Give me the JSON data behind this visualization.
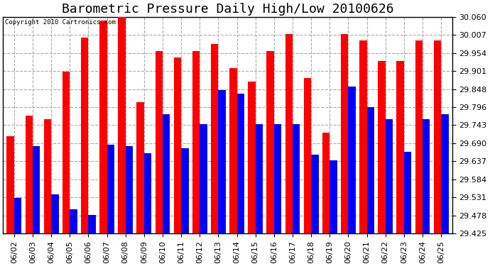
{
  "title": "Barometric Pressure Daily High/Low 20100626",
  "copyright": "Copyright 2010 Cartronics.com",
  "dates": [
    "06/02",
    "06/03",
    "06/04",
    "06/05",
    "06/06",
    "06/07",
    "06/08",
    "06/09",
    "06/10",
    "06/11",
    "06/12",
    "06/13",
    "06/14",
    "06/15",
    "06/16",
    "06/17",
    "06/18",
    "06/19",
    "06/20",
    "06/21",
    "06/22",
    "06/23",
    "06/24",
    "06/25"
  ],
  "highs": [
    29.71,
    29.77,
    29.76,
    29.9,
    30.0,
    30.05,
    30.06,
    29.81,
    29.96,
    29.94,
    29.96,
    29.98,
    29.91,
    29.87,
    29.96,
    30.01,
    29.88,
    29.72,
    30.01,
    29.99,
    29.93,
    29.93,
    29.99,
    29.99
  ],
  "lows": [
    29.53,
    29.68,
    29.54,
    29.495,
    29.48,
    29.685,
    29.68,
    29.66,
    29.775,
    29.675,
    29.745,
    29.845,
    29.835,
    29.745,
    29.745,
    29.745,
    29.655,
    29.64,
    29.855,
    29.795,
    29.76,
    29.665,
    29.76,
    29.775
  ],
  "high_color": "#ff0000",
  "low_color": "#0000ff",
  "bg_color": "#ffffff",
  "grid_color": "#aaaaaa",
  "ylim_min": 29.425,
  "ylim_max": 30.06,
  "yticks": [
    29.425,
    29.478,
    29.531,
    29.584,
    29.637,
    29.69,
    29.743,
    29.796,
    29.848,
    29.901,
    29.954,
    30.007,
    30.06
  ],
  "title_fontsize": 13,
  "tick_fontsize": 8,
  "bar_width": 0.4
}
